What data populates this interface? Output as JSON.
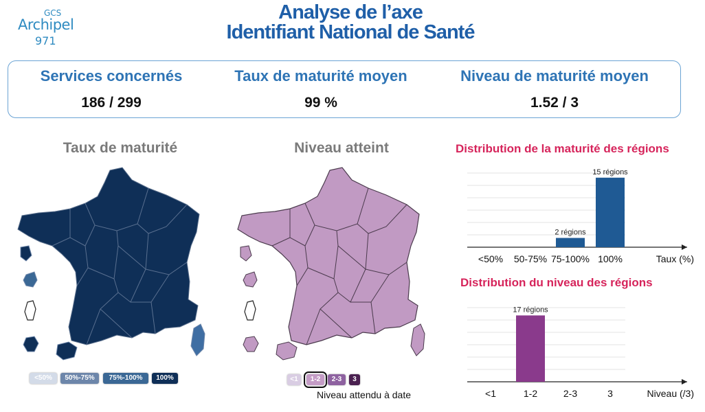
{
  "logo": {
    "line1": "GCS",
    "line2": "Archipel",
    "line3": "971"
  },
  "header": {
    "title_line1": "Analyse de l’axe",
    "title_line2": "Identifiant National de Santé"
  },
  "kpis": [
    {
      "label": "Services concernés",
      "value": "186 / 299"
    },
    {
      "label": "Taux de maturité moyen",
      "value": "99 %"
    },
    {
      "label": "Niveau de maturité moyen",
      "value": "1.52 / 3"
    }
  ],
  "maps": {
    "maturity": {
      "title": "Taux de maturité",
      "legend": [
        "<50%",
        "50%-75%",
        "75%-100%",
        "100%"
      ],
      "colors": {
        "main": "#0f2f57",
        "light": "#d3dbe8",
        "mid": "#6d86aa",
        "mid2": "#3b6895",
        "accent": "#3f6ea3"
      }
    },
    "level": {
      "title": "Niveau atteint",
      "legend": [
        "<1",
        "1-2",
        "2-3",
        "3"
      ],
      "note": "Niveau attendu à date",
      "colors": {
        "main": "#c19ac3",
        "light": "#d9cde3",
        "mid": "#c49cc6",
        "mid2": "#8e62a0",
        "dark": "#4a2050"
      }
    }
  },
  "chart_data": [
    {
      "type": "bar",
      "title": "Distribution de la maturité des régions",
      "categories": [
        "<50%",
        "50-75%",
        "75-100%",
        "100%"
      ],
      "values": [
        0,
        0,
        2,
        15
      ],
      "data_labels": [
        "",
        "",
        "2 régions",
        "15 régions"
      ],
      "xlabel": "Taux (%)",
      "ylim": [
        0,
        16
      ],
      "grid": true,
      "color": "#1f5a94"
    },
    {
      "type": "bar",
      "title": "Distribution du niveau des régions",
      "categories": [
        "<1",
        "1-2",
        "2-3",
        "3"
      ],
      "values": [
        0,
        17,
        0,
        0
      ],
      "data_labels": [
        "",
        "17 régions",
        "",
        ""
      ],
      "xlabel": "Niveau (/3)",
      "ylim": [
        0,
        19
      ],
      "grid": true,
      "color": "#8a3a8c"
    }
  ]
}
